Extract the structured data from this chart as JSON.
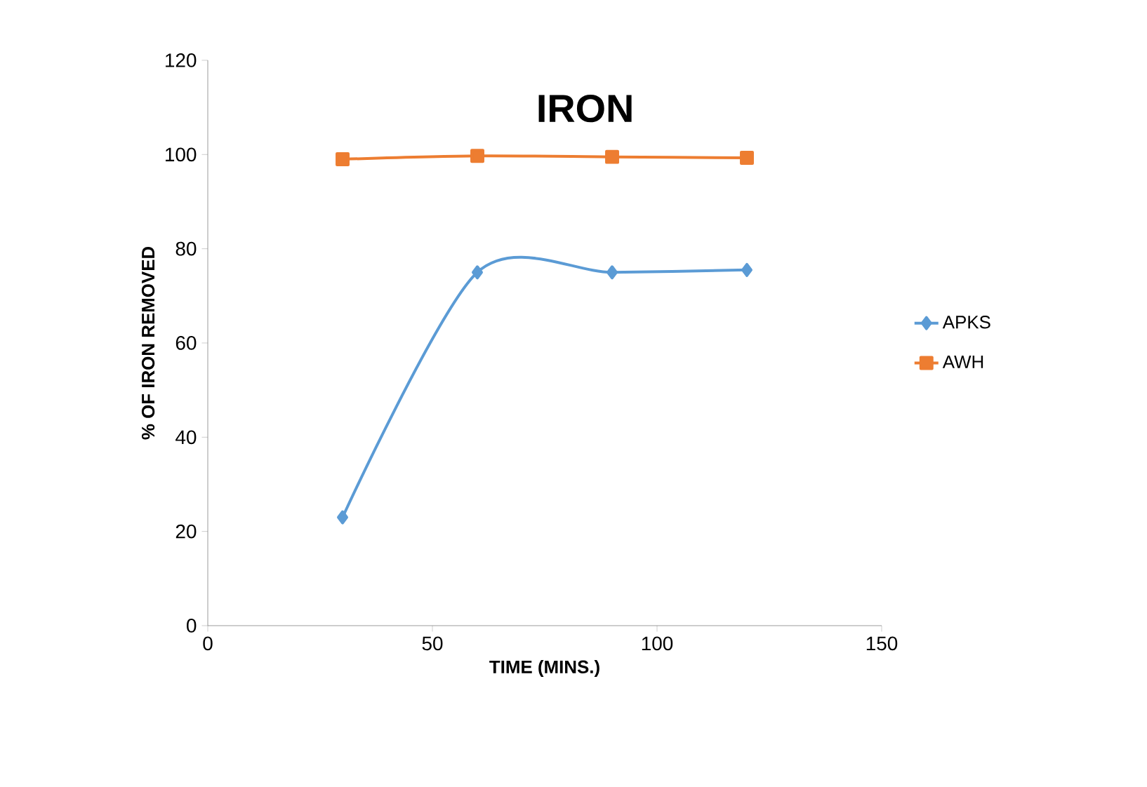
{
  "chart_data": {
    "type": "line",
    "title": "IRON",
    "xlabel": "TIME (MINS.)",
    "ylabel": "% OF IRON REMOVED",
    "x": [
      30,
      60,
      90,
      120
    ],
    "series": [
      {
        "name": "APKS",
        "color": "#5b9bd5",
        "marker": "diamond",
        "values": [
          23,
          75,
          75,
          75.5
        ]
      },
      {
        "name": "AWH",
        "color": "#ed7d31",
        "marker": "square",
        "values": [
          99,
          99.7,
          99.5,
          99.3
        ]
      }
    ],
    "xlim": [
      0,
      150
    ],
    "xticks": [
      0,
      50,
      100,
      150
    ],
    "ylim": [
      0,
      120
    ],
    "yticks": [
      0,
      20,
      40,
      60,
      80,
      100,
      120
    ],
    "grid": false,
    "legend": "right",
    "line_style": "solid"
  }
}
